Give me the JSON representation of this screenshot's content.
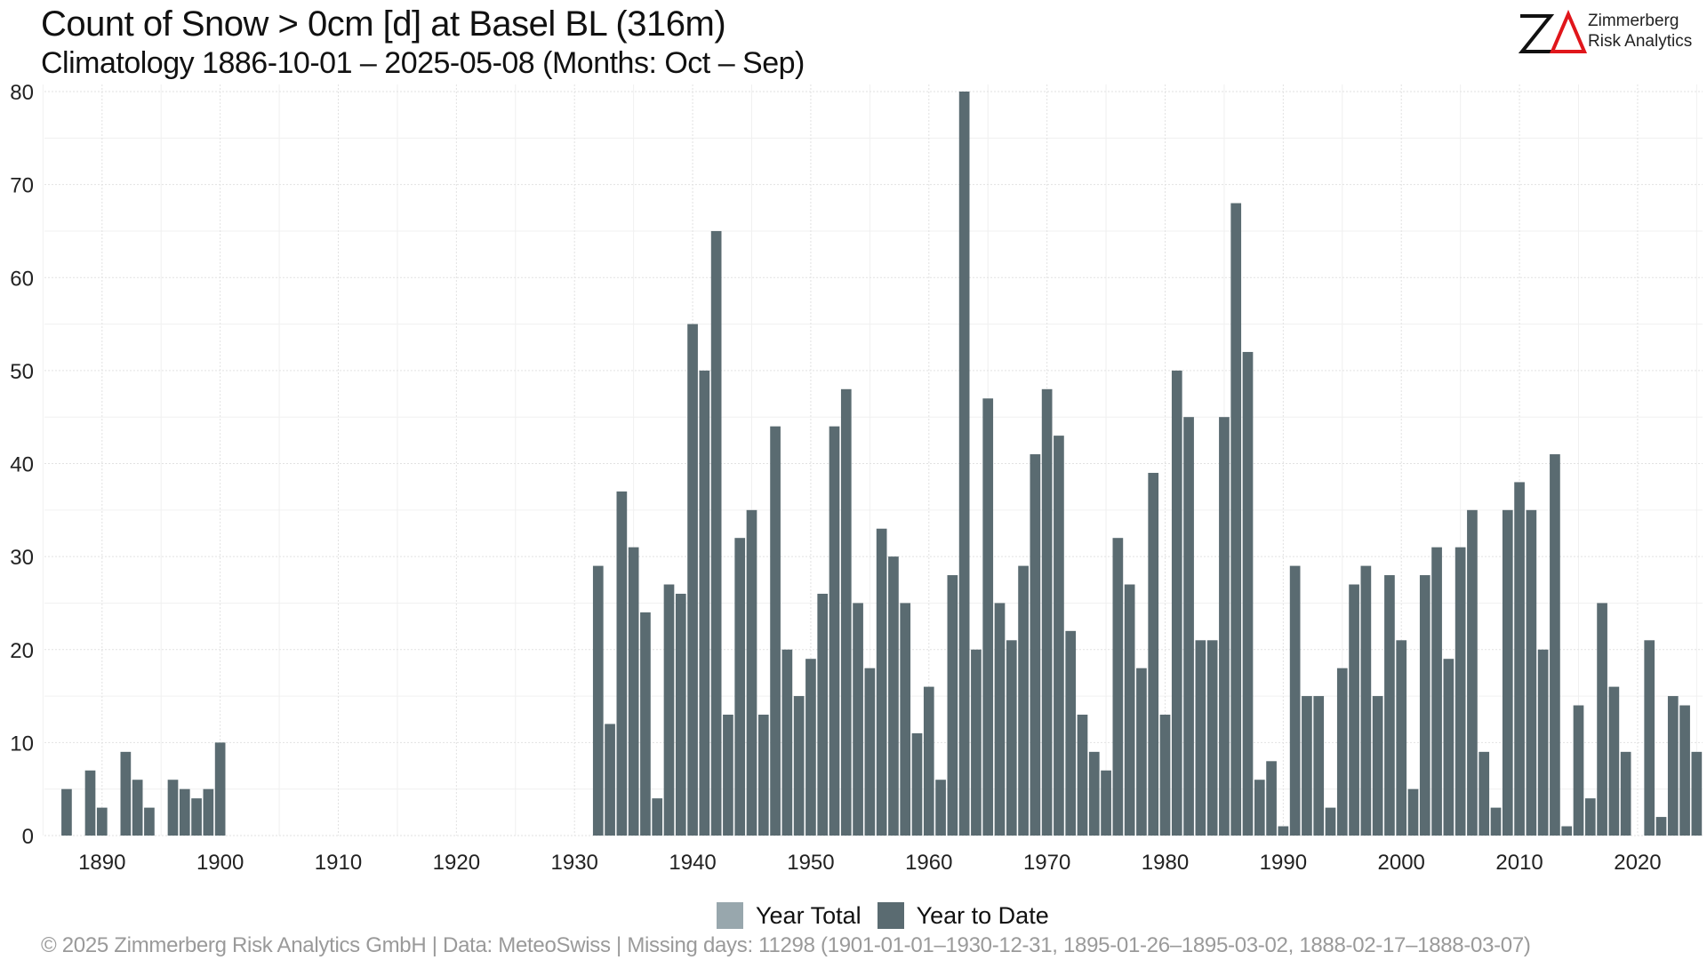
{
  "header": {
    "title": "Count of Snow > 0cm [d] at Basel  BL (316m)",
    "subtitle": "Climatology 1886-10-01 – 2025-05-08 (Months: Oct – Sep)"
  },
  "logo": {
    "mark": "ZΔ",
    "line1": "Zimmerberg",
    "line2": "Risk Analytics",
    "accent_color": "#e0161b"
  },
  "footer": {
    "text": "©  2025 Zimmerberg Risk Analytics GmbH | Data: MeteoSwiss | Missing days: 11298 (1901-01-01–1930-12-31, 1895-01-26–1895-03-02, 1888-02-17–1888-03-07)"
  },
  "chart_data": {
    "type": "bar",
    "xlim": [
      1885.5,
      2025.5
    ],
    "ylim": [
      0,
      80
    ],
    "xticks": [
      "1890",
      "1900",
      "1910",
      "1920",
      "1930",
      "1940",
      "1950",
      "1960",
      "1970",
      "1980",
      "1990",
      "2000",
      "2010",
      "2020"
    ],
    "yticks": [
      "0",
      "10",
      "20",
      "30",
      "40",
      "50",
      "60",
      "70",
      "80"
    ],
    "grid": true,
    "legend_position": "bottom",
    "series": [
      {
        "name": "Year Total",
        "color": "#98a7ad",
        "x": [],
        "values": []
      },
      {
        "name": "Year to Date",
        "color": "#5a6b71",
        "x": [
          1887,
          1889,
          1890,
          1892,
          1893,
          1894,
          1896,
          1897,
          1898,
          1899,
          1900,
          1932,
          1933,
          1934,
          1935,
          1936,
          1937,
          1938,
          1939,
          1940,
          1941,
          1942,
          1943,
          1944,
          1945,
          1946,
          1947,
          1948,
          1949,
          1950,
          1951,
          1952,
          1953,
          1954,
          1955,
          1956,
          1957,
          1958,
          1959,
          1960,
          1961,
          1962,
          1963,
          1964,
          1965,
          1966,
          1967,
          1968,
          1969,
          1970,
          1971,
          1972,
          1973,
          1974,
          1975,
          1976,
          1977,
          1978,
          1979,
          1980,
          1981,
          1982,
          1983,
          1984,
          1985,
          1986,
          1987,
          1988,
          1989,
          1990,
          1991,
          1992,
          1993,
          1994,
          1995,
          1996,
          1997,
          1998,
          1999,
          2000,
          2001,
          2002,
          2003,
          2004,
          2005,
          2006,
          2007,
          2008,
          2009,
          2010,
          2011,
          2012,
          2013,
          2014,
          2015,
          2016,
          2017,
          2018,
          2019,
          2021,
          2022,
          2023,
          2024,
          2025
        ],
        "values": [
          5,
          7,
          3,
          9,
          6,
          3,
          6,
          5,
          4,
          5,
          10,
          29,
          12,
          37,
          31,
          24,
          4,
          27,
          26,
          55,
          50,
          65,
          13,
          32,
          35,
          13,
          44,
          20,
          15,
          19,
          26,
          44,
          48,
          25,
          18,
          33,
          30,
          25,
          11,
          16,
          6,
          28,
          80,
          20,
          47,
          25,
          21,
          29,
          41,
          48,
          43,
          22,
          13,
          9,
          7,
          32,
          27,
          18,
          39,
          13,
          50,
          45,
          21,
          21,
          45,
          68,
          52,
          6,
          8,
          1,
          29,
          15,
          15,
          3,
          18,
          27,
          29,
          15,
          28,
          21,
          5,
          28,
          31,
          19,
          31,
          35,
          9,
          3,
          35,
          38,
          35,
          20,
          41,
          1,
          14,
          4,
          25,
          16,
          9,
          21,
          2,
          15,
          14,
          9
        ]
      }
    ]
  }
}
